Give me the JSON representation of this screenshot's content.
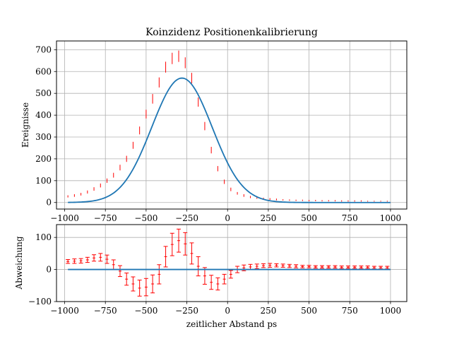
{
  "chart_data": [
    {
      "type": "line",
      "title": "Koinzidenz Positionenkalibrierung",
      "xlabel": "",
      "ylabel": "Ereignisse",
      "xlim": [
        -1050,
        1100
      ],
      "ylim": [
        -30,
        740
      ],
      "grid": true,
      "xticks": [
        -1000,
        -750,
        -500,
        -250,
        0,
        250,
        500,
        750,
        1000
      ],
      "xtick_labels": [
        "−1000",
        "−750",
        "−500",
        "−250",
        "0",
        "250",
        "500",
        "750",
        "1000"
      ],
      "yticks": [
        0,
        100,
        200,
        300,
        400,
        500,
        600,
        700
      ],
      "ytick_labels": [
        "0",
        "100",
        "200",
        "300",
        "400",
        "500",
        "600",
        "700"
      ],
      "series": [
        {
          "kind": "errorbar",
          "color": "#ff0000",
          "x": [
            -980,
            -940,
            -900,
            -860,
            -820,
            -780,
            -740,
            -700,
            -660,
            -620,
            -580,
            -540,
            -500,
            -460,
            -420,
            -380,
            -340,
            -300,
            -260,
            -220,
            -180,
            -140,
            -100,
            -60,
            -20,
            20,
            60,
            100,
            140,
            180,
            220,
            260,
            300,
            340,
            380,
            420,
            460,
            500,
            540,
            580,
            620,
            660,
            700,
            740,
            780,
            820,
            860,
            900,
            940,
            980
          ],
          "y": [
            28,
            32,
            38,
            48,
            62,
            78,
            100,
            125,
            160,
            200,
            262,
            330,
            405,
            475,
            550,
            620,
            660,
            670,
            640,
            570,
            460,
            350,
            240,
            155,
            95,
            60,
            42,
            32,
            25,
            22,
            18,
            16,
            14,
            12,
            11,
            10,
            10,
            9,
            9,
            8,
            8,
            8,
            7,
            7,
            7,
            7,
            6,
            6,
            6,
            6
          ],
          "yerr": [
            5,
            6,
            6,
            7,
            8,
            9,
            10,
            11,
            13,
            14,
            16,
            18,
            20,
            22,
            23,
            25,
            26,
            26,
            25,
            24,
            21,
            19,
            15,
            12,
            10,
            8,
            6,
            6,
            5,
            5,
            4,
            4,
            4,
            3,
            3,
            3,
            3,
            3,
            3,
            3,
            3,
            3,
            3,
            3,
            3,
            3,
            2,
            2,
            2,
            2
          ]
        },
        {
          "kind": "line",
          "color": "#1f77b4",
          "model": "gaussian",
          "amplitude": 570,
          "mean": -280,
          "sigma": 185,
          "x_range": [
            -980,
            1000
          ]
        }
      ]
    },
    {
      "type": "line",
      "title": "",
      "xlabel": "zeitlicher Abstand ps",
      "ylabel": "Abweichung",
      "xlim": [
        -1050,
        1100
      ],
      "ylim": [
        -100,
        140
      ],
      "grid": true,
      "xticks": [
        -1000,
        -750,
        -500,
        -250,
        0,
        250,
        500,
        750,
        1000
      ],
      "xtick_labels": [
        "−1000",
        "−750",
        "−500",
        "−250",
        "0",
        "250",
        "500",
        "750",
        "1000"
      ],
      "yticks": [
        -100,
        0,
        100
      ],
      "ytick_labels": [
        "−100",
        "0",
        "100"
      ],
      "series": [
        {
          "kind": "errorbar",
          "color": "#ff0000",
          "x": [
            -980,
            -940,
            -900,
            -860,
            -820,
            -780,
            -740,
            -700,
            -660,
            -620,
            -580,
            -540,
            -500,
            -460,
            -420,
            -380,
            -340,
            -300,
            -260,
            -220,
            -180,
            -140,
            -100,
            -60,
            -20,
            20,
            60,
            100,
            140,
            180,
            220,
            260,
            300,
            340,
            380,
            420,
            460,
            500,
            540,
            580,
            620,
            660,
            700,
            740,
            780,
            820,
            860,
            900,
            940,
            980
          ],
          "y": [
            25,
            26,
            27,
            30,
            36,
            38,
            32,
            15,
            -5,
            -30,
            -45,
            -58,
            -55,
            -45,
            -15,
            40,
            78,
            90,
            80,
            50,
            10,
            -20,
            -40,
            -45,
            -30,
            -15,
            0,
            5,
            8,
            10,
            12,
            13,
            13,
            12,
            11,
            10,
            9,
            9,
            8,
            8,
            8,
            8,
            7,
            7,
            7,
            7,
            7,
            6,
            6,
            6
          ],
          "yerr": [
            6,
            7,
            7,
            8,
            10,
            12,
            13,
            15,
            17,
            19,
            22,
            25,
            27,
            28,
            30,
            32,
            35,
            36,
            35,
            33,
            30,
            26,
            22,
            19,
            15,
            12,
            10,
            9,
            8,
            7,
            6,
            6,
            5,
            5,
            5,
            5,
            4,
            4,
            4,
            4,
            4,
            4,
            4,
            4,
            4,
            4,
            4,
            4,
            4,
            4
          ]
        },
        {
          "kind": "line",
          "color": "#1f77b4",
          "x": [
            -980,
            1000
          ],
          "y": [
            0,
            0
          ]
        }
      ]
    }
  ]
}
